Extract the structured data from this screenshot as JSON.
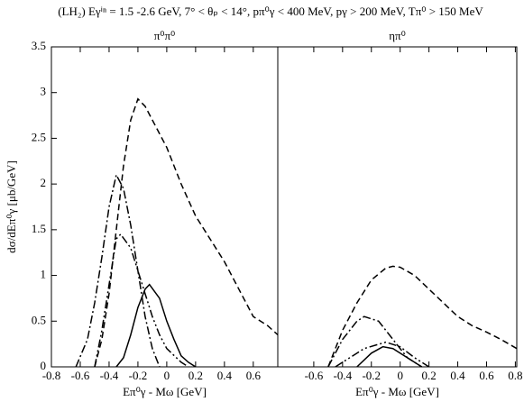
{
  "title": "(LH₂) Eγⁱⁿ = 1.5 -2.6 GeV, 7° < θₚ < 14°,  pπ⁰γ < 400 MeV, pγ > 200 MeV, Tπ⁰ > 150 MeV",
  "chart_data": [
    {
      "type": "line",
      "title": "π⁰π⁰",
      "xlabel": "Eπ⁰γ - Mω [GeV]",
      "ylabel": "dσ/dEπ⁰γ [μb/GeV]",
      "xlim": [
        -0.8,
        0.77
      ],
      "ylim": [
        0,
        3.5
      ],
      "xticks": [
        -0.8,
        -0.6,
        -0.4,
        -0.2,
        0,
        0.2,
        0.4,
        0.6
      ],
      "yticks": [
        0,
        0.5,
        1,
        1.5,
        2,
        2.5,
        3,
        3.5
      ],
      "series": [
        {
          "color": "#000000",
          "dash": "7,4",
          "x": [
            -0.5,
            -0.45,
            -0.4,
            -0.35,
            -0.3,
            -0.25,
            -0.2,
            -0.15,
            -0.1,
            -0.05,
            0,
            0.1,
            0.2,
            0.3,
            0.4,
            0.5,
            0.6,
            0.7,
            0.77
          ],
          "values": [
            0,
            0.3,
            0.8,
            1.5,
            2.2,
            2.7,
            2.93,
            2.85,
            2.7,
            2.55,
            2.4,
            2.0,
            1.65,
            1.4,
            1.15,
            0.85,
            0.55,
            0.45,
            0.35
          ]
        },
        {
          "color": "#000000",
          "dash": "9,3,2,3",
          "x": [
            -0.63,
            -0.55,
            -0.5,
            -0.45,
            -0.4,
            -0.35,
            -0.3,
            -0.25,
            -0.2,
            -0.15,
            -0.1,
            -0.05
          ],
          "values": [
            0,
            0.3,
            0.7,
            1.2,
            1.75,
            2.1,
            1.95,
            1.55,
            1.05,
            0.55,
            0.2,
            0
          ]
        },
        {
          "color": "#000000",
          "dash": "9,3,2,3,2,3",
          "x": [
            -0.5,
            -0.45,
            -0.4,
            -0.35,
            -0.32,
            -0.25,
            -0.2,
            -0.15,
            -0.1,
            -0.05,
            0,
            0.1,
            0.15
          ],
          "values": [
            0,
            0.4,
            0.9,
            1.4,
            1.45,
            1.3,
            1.05,
            0.8,
            0.55,
            0.35,
            0.2,
            0.05,
            0
          ]
        },
        {
          "color": "#000000",
          "dash": "none",
          "x": [
            -0.35,
            -0.3,
            -0.25,
            -0.2,
            -0.15,
            -0.12,
            -0.05,
            0,
            0.05,
            0.1,
            0.15,
            0.2
          ],
          "values": [
            0,
            0.1,
            0.35,
            0.65,
            0.85,
            0.9,
            0.75,
            0.5,
            0.3,
            0.12,
            0.05,
            0
          ]
        }
      ]
    },
    {
      "type": "line",
      "title": "ηπ⁰",
      "xlabel": "Eπ⁰γ - Mω [GeV]",
      "xlim": [
        -0.85,
        0.81
      ],
      "ylim": [
        0,
        3.5
      ],
      "xticks": [
        -0.6,
        -0.4,
        -0.2,
        0,
        0.2,
        0.4,
        0.6,
        0.8
      ],
      "series": [
        {
          "color": "#000000",
          "dash": "7,4",
          "x": [
            -0.5,
            -0.45,
            -0.4,
            -0.3,
            -0.2,
            -0.1,
            -0.05,
            0,
            0.1,
            0.2,
            0.3,
            0.4,
            0.5,
            0.6,
            0.7,
            0.81
          ],
          "values": [
            0,
            0.2,
            0.4,
            0.7,
            0.95,
            1.08,
            1.1,
            1.09,
            1.0,
            0.85,
            0.7,
            0.55,
            0.45,
            0.38,
            0.3,
            0.2
          ]
        },
        {
          "color": "#000000",
          "dash": "9,3,2,3",
          "x": [
            -0.5,
            -0.4,
            -0.3,
            -0.25,
            -0.15,
            -0.05,
            0.05,
            0.15
          ],
          "values": [
            0,
            0.3,
            0.5,
            0.55,
            0.5,
            0.3,
            0.1,
            0
          ]
        },
        {
          "color": "#000000",
          "dash": "9,3,2,3,2,3",
          "x": [
            -0.45,
            -0.35,
            -0.25,
            -0.1,
            0,
            0.1,
            0.2
          ],
          "values": [
            0,
            0.1,
            0.2,
            0.27,
            0.22,
            0.1,
            0
          ]
        },
        {
          "color": "#000000",
          "dash": "none",
          "x": [
            -0.3,
            -0.2,
            -0.12,
            -0.05,
            0.05,
            0.15
          ],
          "values": [
            0,
            0.15,
            0.22,
            0.2,
            0.1,
            0
          ]
        }
      ]
    }
  ]
}
